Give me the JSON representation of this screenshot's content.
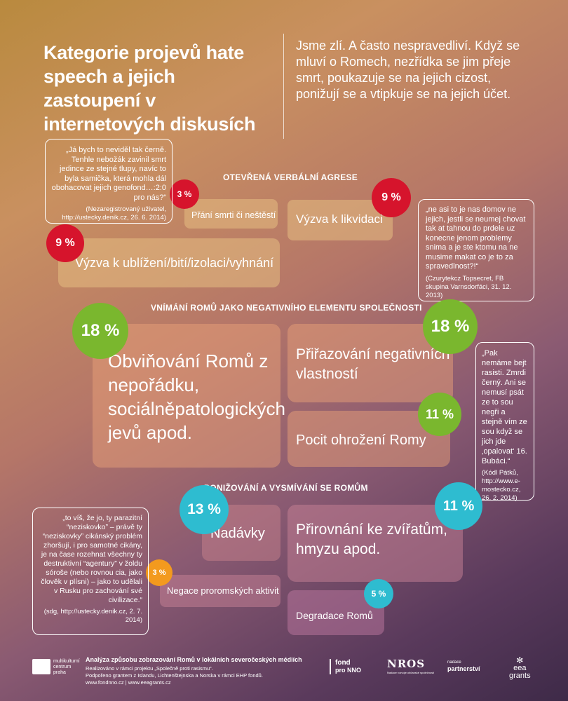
{
  "title": "Kategorie projevů hate speech a jejich zastoupení v internetových diskusích",
  "intro": "Jsme zlí. A často nespravedliví. Když se mluví o Romech, nezřídka se jim přeje smrt, poukazuje se na jejich cizost, ponižují se a vtipkuje se na jejich účet.",
  "sections": {
    "s1": "Otevřená verbální agrese",
    "s2": "Vnímání Romů jako negativního elementu společnosti",
    "s3": "Ponižování a vysmívání se Romům"
  },
  "categories": {
    "c1": {
      "label": "Přání smrti či neštěstí",
      "percent": "3 %"
    },
    "c2": {
      "label": "Výzva k likvidaci",
      "percent": "9 %"
    },
    "c3": {
      "label": "Výzva k ublížení/bití/izolaci/vyhnání",
      "percent": "9 %"
    },
    "c4": {
      "label": "Obviňování Romů z nepořádku, sociálněpatologických jevů apod.",
      "percent": "18 %"
    },
    "c5": {
      "label": "Přiřazování negativních vlastností",
      "percent": "18 %"
    },
    "c6": {
      "label": "Pocit ohrožení Romy",
      "percent": "11 %"
    },
    "c7": {
      "label": "Nadávky",
      "percent": "13 %"
    },
    "c8": {
      "label": "Přirovnání ke zvířatům, hmyzu apod.",
      "percent": "11 %"
    },
    "c9": {
      "label": "Negace proromských aktivit",
      "percent": "3 %"
    },
    "c10": {
      "label": "Degradace Romů",
      "percent": "5 %"
    }
  },
  "quotes": {
    "q1": {
      "text": "„Já bych to neviděl tak černě. Tenhle nebožák zavinil smrt jedince ze stejné tlupy, navíc to byla samička, která mohla dál obohacovat jejich genofond…:2:0 pro nás?“",
      "source": "(Nezaregistrovaný uživatel, http://ustecky.denik.cz, 26. 6. 2014)"
    },
    "q2": {
      "text": "„ne asi to je nas domov ne jejich, jestli se neumej chovat tak at tahnou do prdele uz konecne jenom problemy snima a je ste ktomu na ne musime makat co je to za spravedlnost?!“",
      "source": "(Czurytekcz Topsecret, FB skupina Varnsdorfáci, 31. 12. 2013)"
    },
    "q3": {
      "text": "„Pak nemáme bejt rasisti. Zmrdi černý. Ani se nemusí psát ze to sou negři a stejně vím ze sou když se jich jde ‚opalovat‘ 16. Bubáci.“",
      "source": "(Kódl Pátků, http://www.e-mostecko.cz, 26. 2. 2014)"
    },
    "q4": {
      "text": "„to víš, že jo, ty parazitní “neziskovko” – právě ty “neziskovky” cikánský problém zhoršují, i pro samotné cikány, je na čase rozehnat všechny ty destruktivní “agentury” v žoldu sóroše (nebo rovnou cia, jako člověk v plísni) – jako to udělali v Rusku pro zachování své civilizace.“",
      "source": "(sdg, http://ustecky.denik.cz, 2. 7. 2014)"
    }
  },
  "footer": {
    "logo1": "multikulturní centrum praha",
    "heading": "Analýza způsobu zobrazování Romů v lokálních severočeských médiích",
    "line1": "Realizováno v rámci projektu „Společně proti rasismu“.",
    "line2": "Podpořeno grantem z Islandu, Lichtenštejnska a Norska v rámci EHP fondů.",
    "line3": "www.fondnno.cz | www.eeagrants.cz",
    "logo2_a": "fond",
    "logo2_b": "pro NNO",
    "logo3": "NROS",
    "logo3_sub": "Nadace rozvoje občanské společnosti",
    "logo4_a": "nadace",
    "logo4_b": "partnerství",
    "logo5_a": "eea",
    "logo5_b": "grants"
  },
  "colors": {
    "red": "#d6142c",
    "green": "#7ab72e",
    "cyan": "#2ebcd0",
    "orange": "#f39a1e"
  }
}
